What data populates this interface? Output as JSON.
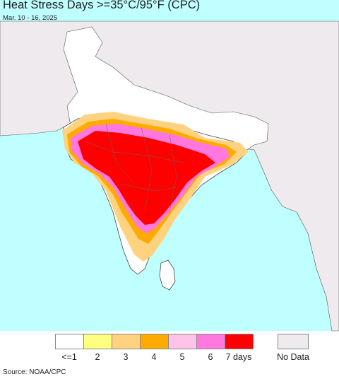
{
  "title": "Heat Stress Days >=35°C/95°F (CPC)",
  "subtitle": "Mar. 10 - 16, 2025",
  "source": "Source: NOAA/CPC",
  "colors": {
    "ocean": "#bfffff",
    "land_outside": "#eeeaee",
    "land": "#ffffff",
    "border": "#444444"
  },
  "legend": {
    "items": [
      {
        "label": "<=1",
        "color": "#ffffff"
      },
      {
        "label": "2",
        "color": "#ffff80"
      },
      {
        "label": "3",
        "color": "#ffd280"
      },
      {
        "label": "4",
        "color": "#ffaa00"
      },
      {
        "label": "5",
        "color": "#ffc2e8"
      },
      {
        "label": "6",
        "color": "#ff78e0"
      },
      {
        "label": "7 days",
        "color": "#ff0000"
      }
    ],
    "no_data": {
      "label": "No Data",
      "color": "#eeeaee"
    }
  }
}
